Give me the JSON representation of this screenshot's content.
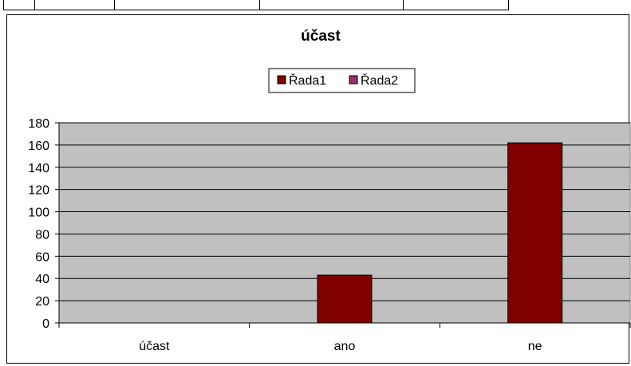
{
  "chart_data": {
    "type": "bar",
    "title": "účast",
    "xlabel": "",
    "ylabel": "",
    "categories": [
      "účast",
      "ano",
      "ne"
    ],
    "series": [
      {
        "name": "Řada1",
        "color": "#800000",
        "values": [
          0,
          43,
          162
        ]
      },
      {
        "name": "Řada2",
        "color": "#993366",
        "values": [
          0,
          0,
          0
        ]
      }
    ],
    "ylim": [
      0,
      180
    ],
    "yticks": [
      0,
      20,
      40,
      60,
      80,
      100,
      120,
      140,
      160,
      180
    ],
    "grid": true,
    "plot_background": "#C0C0C0",
    "legend_position": "top"
  }
}
